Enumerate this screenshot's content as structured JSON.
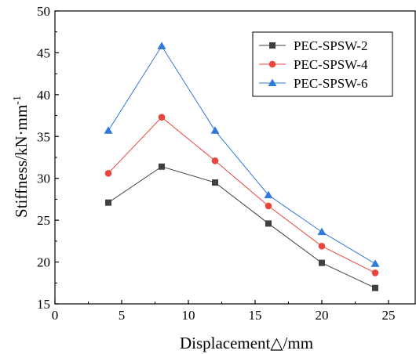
{
  "chart_data": {
    "type": "line",
    "xlabel": "Displacement△/mm",
    "ylabel_main": "Stiffness/kN·mm",
    "ylabel_sup": "-1",
    "xlim": [
      0,
      27
    ],
    "ylim": [
      15,
      50
    ],
    "xticks": [
      0,
      5,
      10,
      15,
      20,
      25
    ],
    "yticks": [
      15,
      20,
      25,
      30,
      35,
      40,
      45,
      50
    ],
    "grid": false,
    "legend_position": "top-right",
    "x": [
      4,
      8,
      12,
      16,
      20,
      24
    ],
    "series": [
      {
        "name": "PEC-SPSW-2",
        "values": [
          27.1,
          31.4,
          29.5,
          24.6,
          19.9,
          16.9
        ],
        "color": "#404040",
        "marker": "square"
      },
      {
        "name": "PEC-SPSW-4",
        "values": [
          30.6,
          37.3,
          32.1,
          26.7,
          21.9,
          18.7
        ],
        "color": "#e8453c",
        "marker": "circle"
      },
      {
        "name": "PEC-SPSW-6",
        "values": [
          35.7,
          45.8,
          35.7,
          28.0,
          23.6,
          19.8
        ],
        "color": "#2f7ad8",
        "marker": "triangle"
      }
    ]
  }
}
